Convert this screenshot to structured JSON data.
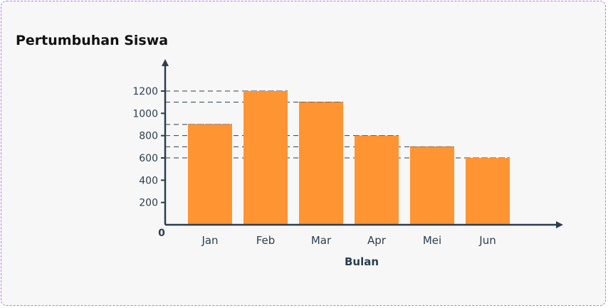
{
  "chart_data": {
    "type": "bar",
    "title": "Pertumbuhan Siswa",
    "xlabel": "Bulan",
    "ylabel": "",
    "categories": [
      "Jan",
      "Feb",
      "Mar",
      "Apr",
      "Mei",
      "Jun"
    ],
    "values": [
      900,
      1200,
      1100,
      800,
      700,
      600
    ],
    "yticks": [
      200,
      400,
      600,
      800,
      1000,
      1200
    ],
    "origin_label": "0",
    "ylim": [
      0,
      1200
    ],
    "bar_color": "#ff9433",
    "axis_color": "#2c3e4e",
    "reference_lines": "dashed lines from each bar top to y-axis"
  }
}
